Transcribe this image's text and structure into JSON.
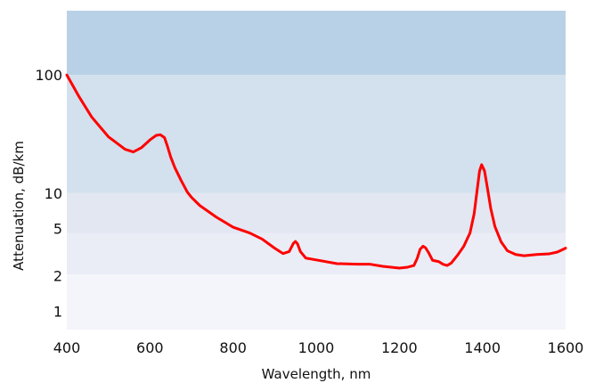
{
  "chart_data": {
    "type": "line",
    "title": "",
    "xlabel": "Wavelength, nm",
    "ylabel": "Attenuation, dB/km",
    "xlim": [
      400,
      1600
    ],
    "ylim": [
      0.7,
      350
    ],
    "yscale": "log",
    "grid": false,
    "legend": "none",
    "x_ticks": [
      400,
      600,
      800,
      1000,
      1200,
      1400,
      1600
    ],
    "x_tick_labels": [
      "400",
      "600",
      "800",
      "1000",
      "1200",
      "1400",
      "1600"
    ],
    "y_ticks": [
      1,
      2,
      5,
      10,
      100
    ],
    "y_tick_labels": [
      "1",
      "2",
      "5",
      "10",
      "100"
    ],
    "bands": [
      {
        "from": 100,
        "to": 350,
        "color": "#b8d1e6"
      },
      {
        "from": 10,
        "to": 100,
        "color": "#d3e0ed"
      },
      {
        "from": 4.6,
        "to": 10,
        "color": "#e2e7f1"
      },
      {
        "from": 2.05,
        "to": 4.6,
        "color": "#eaedf6"
      },
      {
        "from": 0.7,
        "to": 2.05,
        "color": "#f4f5fa"
      }
    ],
    "series": [
      {
        "name": "",
        "color": "#ff0000",
        "x": [
          400,
          430,
          460,
          500,
          540,
          560,
          580,
          600,
          615,
          625,
          635,
          642,
          650,
          660,
          675,
          690,
          700,
          720,
          760,
          800,
          840,
          870,
          900,
          920,
          935,
          945,
          950,
          955,
          962,
          975,
          1000,
          1050,
          1100,
          1130,
          1160,
          1200,
          1220,
          1235,
          1243,
          1250,
          1257,
          1263,
          1270,
          1280,
          1295,
          1305,
          1315,
          1325,
          1340,
          1355,
          1370,
          1380,
          1387,
          1393,
          1398,
          1405,
          1412,
          1420,
          1430,
          1445,
          1460,
          1480,
          1500,
          1530,
          1560,
          1580,
          1600
        ],
        "y": [
          100,
          65,
          44,
          30,
          23.5,
          22.3,
          24.3,
          28.2,
          30.8,
          31.2,
          29.5,
          25,
          20.2,
          16.4,
          12.8,
          10.2,
          9.2,
          7.85,
          6.25,
          5.15,
          4.6,
          4.08,
          3.42,
          3.08,
          3.2,
          3.75,
          3.9,
          3.72,
          3.2,
          2.82,
          2.72,
          2.53,
          2.5,
          2.5,
          2.4,
          2.32,
          2.36,
          2.44,
          2.8,
          3.35,
          3.55,
          3.45,
          3.15,
          2.7,
          2.63,
          2.5,
          2.44,
          2.56,
          2.98,
          3.55,
          4.6,
          6.7,
          10.5,
          15.4,
          17.4,
          15.4,
          11,
          7.4,
          5.2,
          3.86,
          3.25,
          3.02,
          2.95,
          3.02,
          3.06,
          3.17,
          3.42
        ]
      }
    ]
  }
}
